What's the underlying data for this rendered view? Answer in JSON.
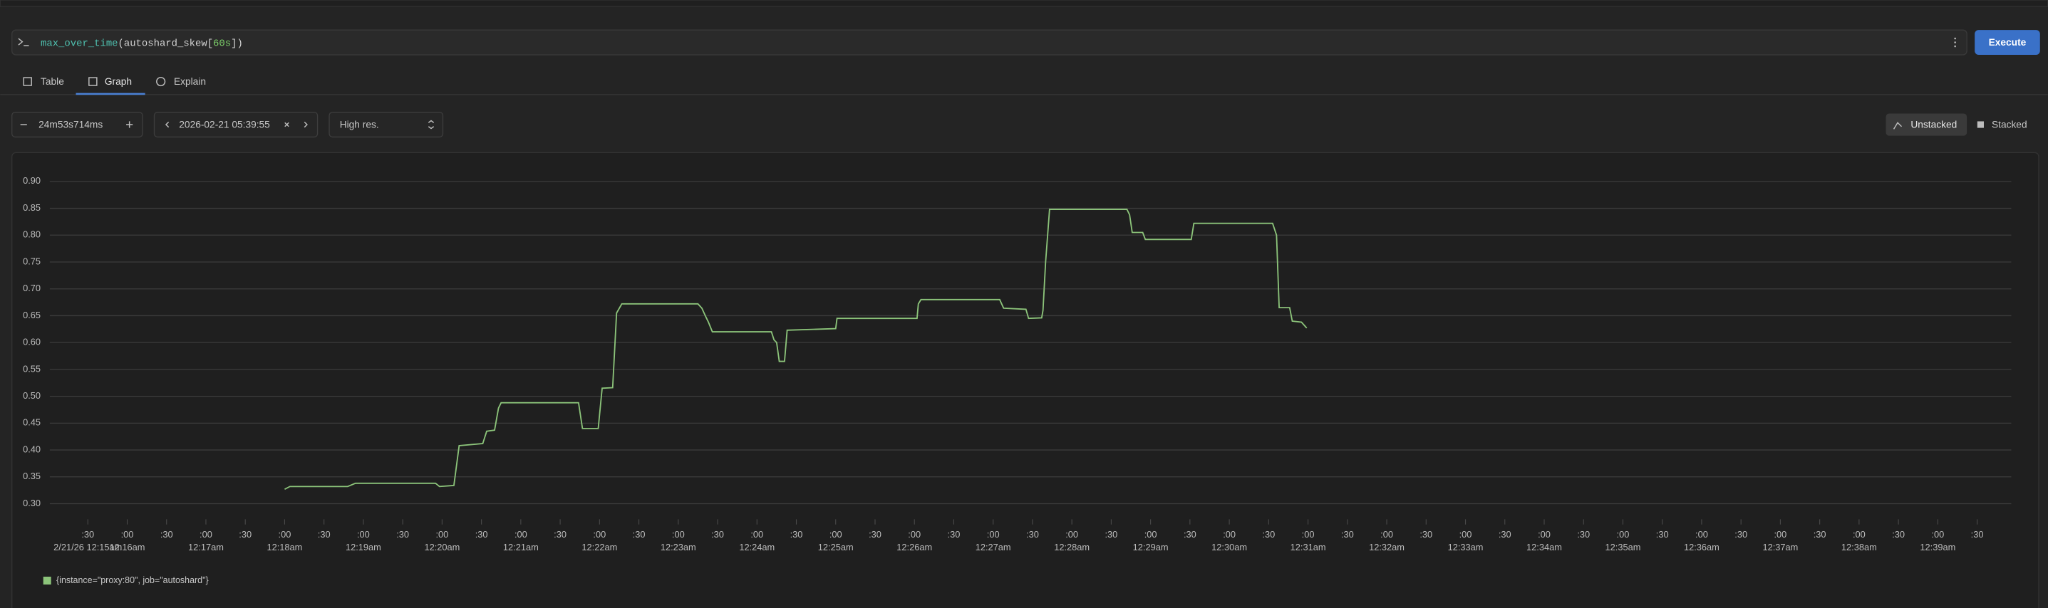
{
  "query": {
    "tokens": [
      {
        "text": "max_over_time",
        "color": "#4fc1b0"
      },
      {
        "text": "(autoshard_skew[",
        "color": "#d4d4d4"
      },
      {
        "text": "60s",
        "color": "#7ccf6a"
      },
      {
        "text": "])",
        "color": "#d4d4d4"
      }
    ]
  },
  "execute_button": "Execute",
  "tabs": [
    "Table",
    "Graph",
    "Explain"
  ],
  "controls": {
    "range": "24m53s714ms",
    "end_time": "2026-02-21 05:39:55",
    "resolution": "High res.",
    "modes": [
      "Unstacked",
      "Stacked"
    ]
  },
  "chart_data": {
    "type": "line",
    "grid": true,
    "x": [
      "12:18:00",
      "12:18:04",
      "12:18:48",
      "12:18:54",
      "12:19:55",
      "12:19:58",
      "12:20:09",
      "12:20:13",
      "12:20:31",
      "12:20:34",
      "12:20:40",
      "12:20:43",
      "12:20:45",
      "12:21:44",
      "12:21:47",
      "12:21:59",
      "12:22:02",
      "12:22:10",
      "12:22:13",
      "12:22:17",
      "12:23:15",
      "12:23:18",
      "12:23:21",
      "12:23:23",
      "12:23:26",
      "12:24:11",
      "12:24:13",
      "12:24:15",
      "12:24:17",
      "12:24:21",
      "12:24:23",
      "12:25:00",
      "12:25:01",
      "12:26:02",
      "12:26:03",
      "12:26:05",
      "12:27:05",
      "12:27:08",
      "12:27:25",
      "12:27:27",
      "12:27:37",
      "12:27:38",
      "12:27:40",
      "12:27:43",
      "12:28:42",
      "12:28:44",
      "12:28:46",
      "12:28:54",
      "12:28:56",
      "12:29:31",
      "12:29:33",
      "12:30:33",
      "12:30:36",
      "12:30:38",
      "12:30:46",
      "12:30:48",
      "12:30:55",
      "12:30:59"
    ],
    "series": [
      {
        "name": "{instance=\"proxy:80\", job=\"autoshard\"}",
        "color": "#8cc47a",
        "values": [
          0.327,
          0.332,
          0.332,
          0.338,
          0.338,
          0.332,
          0.334,
          0.408,
          0.412,
          0.435,
          0.437,
          0.478,
          0.488,
          0.488,
          0.44,
          0.44,
          0.515,
          0.516,
          0.655,
          0.672,
          0.672,
          0.664,
          0.648,
          0.638,
          0.62,
          0.62,
          0.605,
          0.6,
          0.565,
          0.565,
          0.623,
          0.626,
          0.645,
          0.645,
          0.672,
          0.68,
          0.68,
          0.664,
          0.662,
          0.645,
          0.646,
          0.66,
          0.75,
          0.848,
          0.848,
          0.838,
          0.805,
          0.805,
          0.792,
          0.792,
          0.822,
          0.822,
          0.8,
          0.665,
          0.665,
          0.64,
          0.638,
          0.627
        ]
      }
    ],
    "xlim": [
      "12:15:01",
      "12:39:56"
    ],
    "ylim": [
      0.271,
      0.922
    ],
    "yticks": [
      {
        "value": 0.3,
        "label": "0.30"
      },
      {
        "value": 0.35,
        "label": "0.35"
      },
      {
        "value": 0.4,
        "label": "0.40"
      },
      {
        "value": 0.45,
        "label": "0.45"
      },
      {
        "value": 0.5,
        "label": "0.50"
      },
      {
        "value": 0.55,
        "label": "0.55"
      },
      {
        "value": 0.6,
        "label": "0.60"
      },
      {
        "value": 0.65,
        "label": "0.65"
      },
      {
        "value": 0.7,
        "label": "0.70"
      },
      {
        "value": 0.75,
        "label": "0.75"
      },
      {
        "value": 0.8,
        "label": "0.80"
      },
      {
        "value": 0.85,
        "label": "0.85"
      },
      {
        "value": 0.9,
        "label": "0.90"
      }
    ],
    "xticks": [
      {
        "value": "12:15:30",
        "label": ":30"
      },
      {
        "value": "12:16:00",
        "label": ":00"
      },
      {
        "value": "12:16:30",
        "label": ":30"
      },
      {
        "value": "12:17:00",
        "label": ":00"
      },
      {
        "value": "12:17:30",
        "label": ":30"
      },
      {
        "value": "12:18:00",
        "label": ":00"
      },
      {
        "value": "12:18:30",
        "label": ":30"
      },
      {
        "value": "12:19:00",
        "label": ":00"
      },
      {
        "value": "12:19:30",
        "label": ":30"
      },
      {
        "value": "12:20:00",
        "label": ":00"
      },
      {
        "value": "12:20:30",
        "label": ":30"
      },
      {
        "value": "12:21:00",
        "label": ":00"
      },
      {
        "value": "12:21:30",
        "label": ":30"
      },
      {
        "value": "12:22:00",
        "label": ":00"
      },
      {
        "value": "12:22:30",
        "label": ":30"
      },
      {
        "value": "12:23:00",
        "label": ":00"
      },
      {
        "value": "12:23:30",
        "label": ":30"
      },
      {
        "value": "12:24:00",
        "label": ":00"
      },
      {
        "value": "12:24:30",
        "label": ":30"
      },
      {
        "value": "12:25:00",
        "label": ":00"
      },
      {
        "value": "12:25:30",
        "label": ":30"
      },
      {
        "value": "12:26:00",
        "label": ":00"
      },
      {
        "value": "12:26:30",
        "label": ":30"
      },
      {
        "value": "12:27:00",
        "label": ":00"
      },
      {
        "value": "12:27:30",
        "label": ":30"
      },
      {
        "value": "12:28:00",
        "label": ":00"
      },
      {
        "value": "12:28:30",
        "label": ":30"
      },
      {
        "value": "12:29:00",
        "label": ":00"
      },
      {
        "value": "12:29:30",
        "label": ":30"
      },
      {
        "value": "12:30:00",
        "label": ":00"
      },
      {
        "value": "12:30:30",
        "label": ":30"
      },
      {
        "value": "12:31:00",
        "label": ":00"
      },
      {
        "value": "12:31:30",
        "label": ":30"
      },
      {
        "value": "12:32:00",
        "label": ":00"
      },
      {
        "value": "12:32:30",
        "label": ":30"
      },
      {
        "value": "12:33:00",
        "label": ":00"
      },
      {
        "value": "12:33:30",
        "label": ":30"
      },
      {
        "value": "12:34:00",
        "label": ":00"
      },
      {
        "value": "12:34:30",
        "label": ":30"
      },
      {
        "value": "12:35:00",
        "label": ":00"
      },
      {
        "value": "12:35:30",
        "label": ":30"
      },
      {
        "value": "12:36:00",
        "label": ":00"
      },
      {
        "value": "12:36:30",
        "label": ":30"
      },
      {
        "value": "12:37:00",
        "label": ":00"
      },
      {
        "value": "12:37:30",
        "label": ":30"
      },
      {
        "value": "12:38:00",
        "label": ":00"
      },
      {
        "value": "12:38:30",
        "label": ":30"
      },
      {
        "value": "12:39:00",
        "label": ":00"
      },
      {
        "value": "12:39:30",
        "label": ":30"
      }
    ],
    "xtick_dates": [
      {
        "value": "12:15:30",
        "label": "2/21/26 12:15am"
      },
      {
        "value": "12:16:00",
        "label": "12:16am"
      },
      {
        "value": "12:17:00",
        "label": "12:17am"
      },
      {
        "value": "12:18:00",
        "label": "12:18am"
      },
      {
        "value": "12:19:00",
        "label": "12:19am"
      },
      {
        "value": "12:20:00",
        "label": "12:20am"
      },
      {
        "value": "12:21:00",
        "label": "12:21am"
      },
      {
        "value": "12:22:00",
        "label": "12:22am"
      },
      {
        "value": "12:23:00",
        "label": "12:23am"
      },
      {
        "value": "12:24:00",
        "label": "12:24am"
      },
      {
        "value": "12:25:00",
        "label": "12:25am"
      },
      {
        "value": "12:26:00",
        "label": "12:26am"
      },
      {
        "value": "12:27:00",
        "label": "12:27am"
      },
      {
        "value": "12:28:00",
        "label": "12:28am"
      },
      {
        "value": "12:29:00",
        "label": "12:29am"
      },
      {
        "value": "12:30:00",
        "label": "12:30am"
      },
      {
        "value": "12:31:00",
        "label": "12:31am"
      },
      {
        "value": "12:32:00",
        "label": "12:32am"
      },
      {
        "value": "12:33:00",
        "label": "12:33am"
      },
      {
        "value": "12:34:00",
        "label": "12:34am"
      },
      {
        "value": "12:35:00",
        "label": "12:35am"
      },
      {
        "value": "12:36:00",
        "label": "12:36am"
      },
      {
        "value": "12:37:00",
        "label": "12:37am"
      },
      {
        "value": "12:38:00",
        "label": "12:38am"
      },
      {
        "value": "12:39:00",
        "label": "12:39am"
      }
    ]
  }
}
